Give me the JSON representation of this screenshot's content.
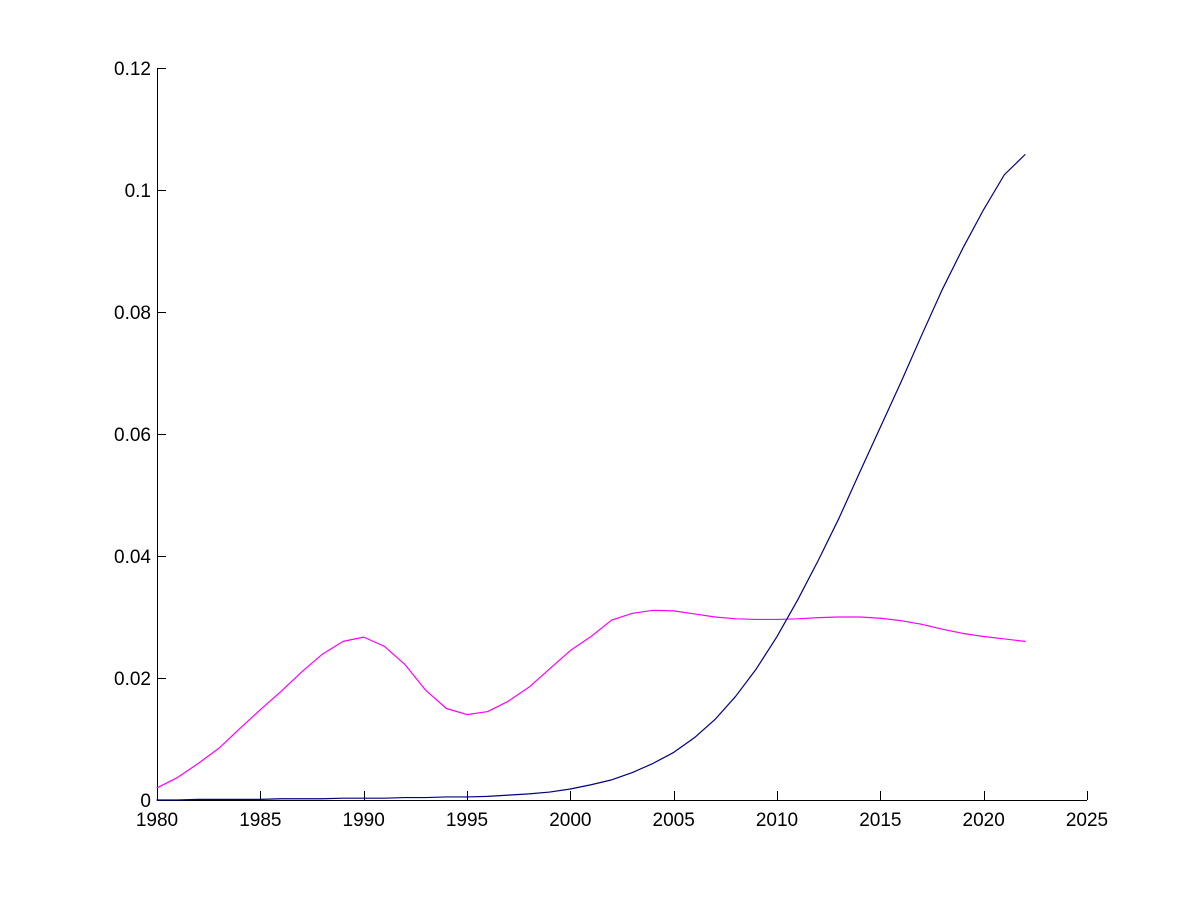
{
  "chart_data": {
    "type": "line",
    "title": "",
    "xlabel": "",
    "ylabel": "",
    "xlim": [
      1980,
      2025
    ],
    "ylim": [
      0,
      0.12
    ],
    "grid": false,
    "legend": "none",
    "x_ticks": [
      {
        "value": 1980,
        "label": "1980"
      },
      {
        "value": 1985,
        "label": "1985"
      },
      {
        "value": 1990,
        "label": "1990"
      },
      {
        "value": 1995,
        "label": "1995"
      },
      {
        "value": 2000,
        "label": "2000"
      },
      {
        "value": 2005,
        "label": "2005"
      },
      {
        "value": 2010,
        "label": "2010"
      },
      {
        "value": 2015,
        "label": "2015"
      },
      {
        "value": 2020,
        "label": "2020"
      },
      {
        "value": 2025,
        "label": "2025"
      }
    ],
    "y_ticks": [
      {
        "value": 0,
        "label": "0"
      },
      {
        "value": 0.02,
        "label": "0.02"
      },
      {
        "value": 0.04,
        "label": "0.04"
      },
      {
        "value": 0.06,
        "label": "0.06"
      },
      {
        "value": 0.08,
        "label": "0.08"
      },
      {
        "value": 0.1,
        "label": "0.1"
      },
      {
        "value": 0.12,
        "label": "0.12"
      }
    ],
    "series": [
      {
        "color": "#ff00ff",
        "x": [
          1980,
          1981,
          1982,
          1983,
          1984,
          1985,
          1986,
          1987,
          1988,
          1989,
          1990,
          1991,
          1992,
          1993,
          1994,
          1995,
          1996,
          1997,
          1998,
          1999,
          2000,
          2001,
          2002,
          2003,
          2004,
          2005,
          2006,
          2007,
          2008,
          2009,
          2010,
          2011,
          2012,
          2013,
          2014,
          2015,
          2016,
          2017,
          2018,
          2019,
          2020,
          2021,
          2022
        ],
        "y": [
          0.002,
          0.0037,
          0.006,
          0.0085,
          0.0117,
          0.0148,
          0.0178,
          0.021,
          0.0239,
          0.026,
          0.0267,
          0.0252,
          0.0222,
          0.018,
          0.015,
          0.014,
          0.0145,
          0.0162,
          0.0185,
          0.0215,
          0.0245,
          0.0268,
          0.0295,
          0.0306,
          0.0311,
          0.031,
          0.0305,
          0.03,
          0.0297,
          0.0296,
          0.0296,
          0.0297,
          0.0299,
          0.03,
          0.03,
          0.0298,
          0.0294,
          0.0288,
          0.028,
          0.0273,
          0.0268,
          0.0264,
          0.026
        ]
      },
      {
        "color": "#000080",
        "x": [
          1980,
          1981,
          1982,
          1983,
          1984,
          1985,
          1986,
          1987,
          1988,
          1989,
          1990,
          1991,
          1992,
          1993,
          1994,
          1995,
          1996,
          1997,
          1998,
          1999,
          2000,
          2001,
          2002,
          2003,
          2004,
          2005,
          2006,
          2007,
          2008,
          2009,
          2010,
          2011,
          2012,
          2013,
          2014,
          2015,
          2016,
          2017,
          2018,
          2019,
          2020,
          2021,
          2022
        ],
        "y": [
          0,
          0,
          0.0001,
          0.0001,
          0.0001,
          0.0001,
          0.0002,
          0.0002,
          0.0002,
          0.0003,
          0.0003,
          0.0003,
          0.0004,
          0.0004,
          0.0005,
          0.0005,
          0.0006,
          0.0008,
          0.001,
          0.0013,
          0.0018,
          0.0025,
          0.0033,
          0.0045,
          0.006,
          0.0078,
          0.0102,
          0.0132,
          0.017,
          0.0215,
          0.0268,
          0.0328,
          0.0393,
          0.0462,
          0.0537,
          0.0611,
          0.0685,
          0.0762,
          0.0837,
          0.0905,
          0.0968,
          0.1025,
          0.1058
        ]
      }
    ]
  }
}
